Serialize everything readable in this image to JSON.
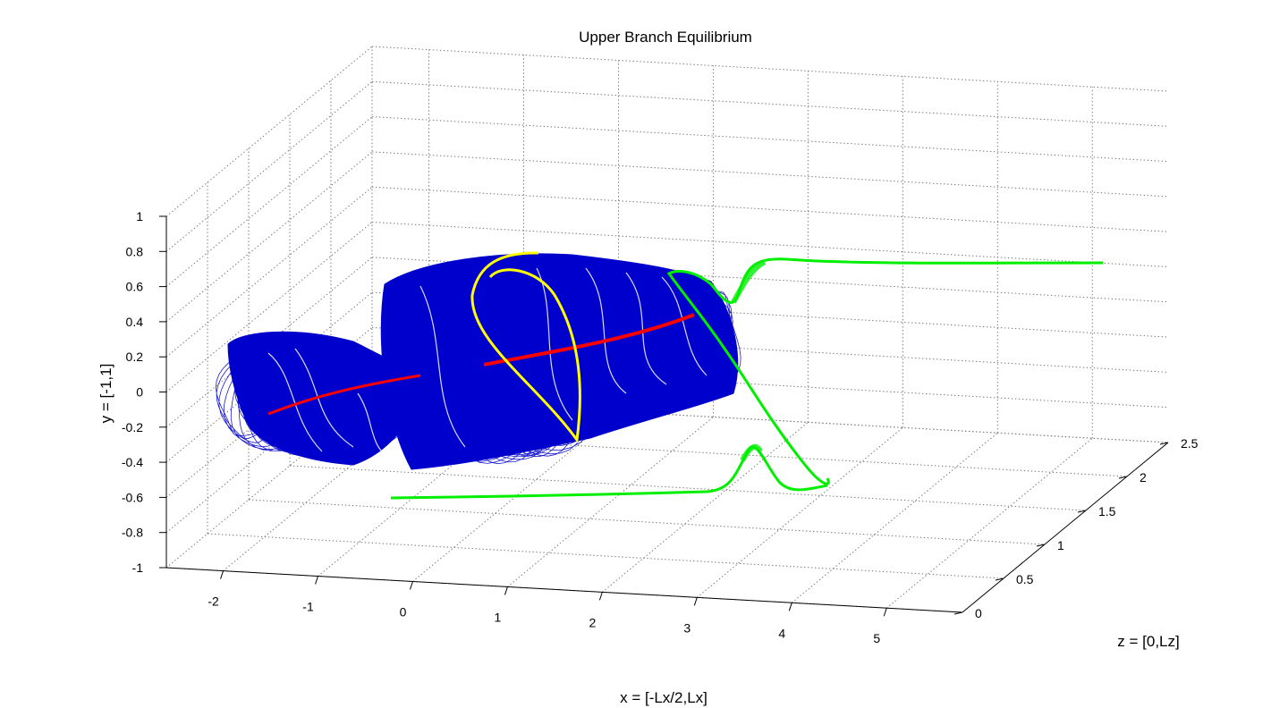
{
  "chart_data": {
    "type": "3d-line",
    "title": "Upper Branch Equilibrium",
    "xlabel": "x = [-Lx/2,Lx]",
    "ylabel": "y = [-1,1]",
    "zlabel": "z = [0,Lz]",
    "x_ticks": [
      "-2",
      "-1",
      "0",
      "1",
      "2",
      "3",
      "4",
      "5"
    ],
    "y_ticks": [
      "-1",
      "-0.8",
      "-0.6",
      "-0.4",
      "-0.2",
      "0",
      "0.2",
      "0.4",
      "0.6",
      "0.8",
      "1"
    ],
    "z_ticks": [
      "0",
      "0.5",
      "1",
      "1.5",
      "2",
      "2.5"
    ],
    "xlim": [
      -2.6,
      5.8
    ],
    "ylim": [
      -1,
      1
    ],
    "zlim": [
      0,
      2.5
    ],
    "grid": true,
    "series": [
      {
        "color": "#0000cc"
      },
      {
        "color": "#ff0000"
      },
      {
        "color": "#ffff00"
      },
      {
        "color": "#00ee00"
      }
    ]
  }
}
